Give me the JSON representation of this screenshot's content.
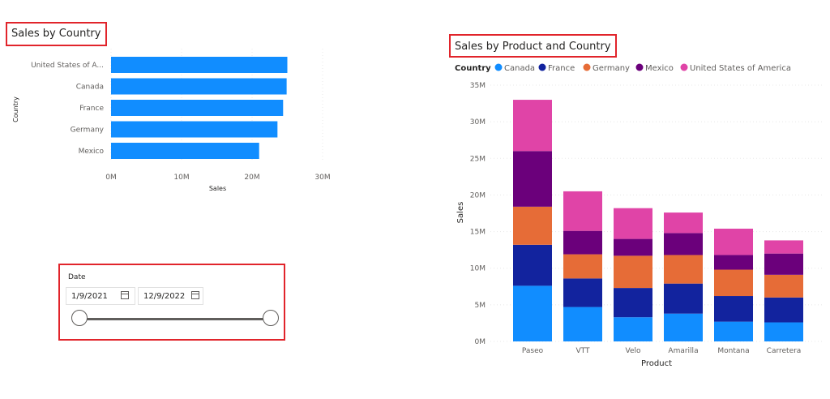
{
  "colors": {
    "bar_blue": "#118dff",
    "canada": "#118dff",
    "france": "#12239e",
    "germany": "#e66c37",
    "mexico": "#6b007b",
    "usa": "#e044a7",
    "highlight_border": "#e1242b"
  },
  "sales_by_country": {
    "title": "Sales by Country"
  },
  "sales_by_product": {
    "title": "Sales by Product and Country"
  },
  "date_slicer": {
    "label": "Date",
    "start_date": "1/9/2021",
    "end_date": "12/9/2022",
    "start_icon": "calendar-icon",
    "end_icon": "calendar-icon",
    "range_start": 0,
    "range_end": 1
  },
  "chart_data": [
    {
      "type": "bar",
      "orientation": "horizontal",
      "title": "Sales by Country",
      "xlabel": "Sales",
      "ylabel": "Country",
      "categories": [
        "United States of A...",
        "Canada",
        "France",
        "Germany",
        "Mexico"
      ],
      "values": [
        25.0,
        24.9,
        24.4,
        23.6,
        21.0
      ],
      "value_unit": "M",
      "xlim": [
        0,
        30
      ],
      "xticks": [
        "0M",
        "10M",
        "20M",
        "30M"
      ],
      "grid": true
    },
    {
      "type": "bar",
      "stacked": true,
      "title": "Sales by Product and Country",
      "xlabel": "Product",
      "ylabel": "Sales",
      "legend_title": "Country",
      "legend_position": "top-left",
      "categories": [
        "Paseo",
        "VTT",
        "Velo",
        "Amarilla",
        "Montana",
        "Carretera"
      ],
      "series": [
        {
          "name": "Canada",
          "values": [
            7.6,
            4.7,
            3.3,
            3.8,
            2.7,
            2.6
          ]
        },
        {
          "name": "France",
          "values": [
            5.6,
            3.9,
            4.0,
            4.1,
            3.5,
            3.4
          ]
        },
        {
          "name": "Germany",
          "values": [
            5.2,
            3.3,
            4.4,
            3.9,
            3.6,
            3.1
          ]
        },
        {
          "name": "Mexico",
          "values": [
            7.6,
            3.2,
            2.3,
            3.0,
            2.0,
            2.9
          ]
        },
        {
          "name": "United States of America",
          "values": [
            7.0,
            5.4,
            4.2,
            2.8,
            3.6,
            1.8
          ]
        }
      ],
      "value_unit": "M",
      "ylim": [
        0,
        35
      ],
      "yticks": [
        "0M",
        "5M",
        "10M",
        "15M",
        "20M",
        "25M",
        "30M",
        "35M"
      ],
      "grid": true
    }
  ]
}
